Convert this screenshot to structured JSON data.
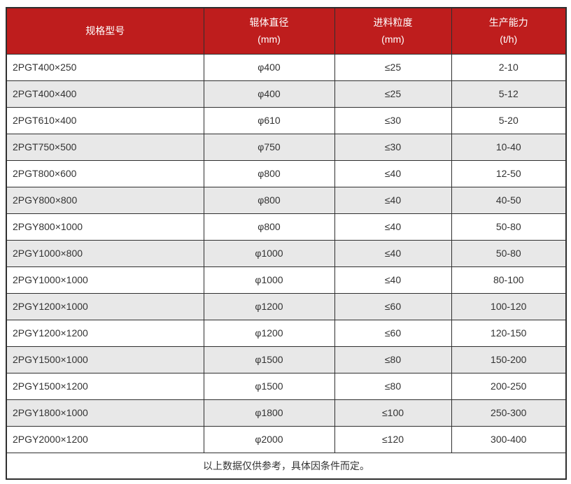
{
  "chart_data": {
    "type": "table",
    "title": "",
    "columns": [
      {
        "label": "规格型号",
        "unit": ""
      },
      {
        "label": "辊体直径",
        "unit": "(mm)"
      },
      {
        "label": "进料粒度",
        "unit": "(mm)"
      },
      {
        "label": "生产能力",
        "unit": "(t/h)"
      }
    ],
    "rows": [
      [
        "2PGT400×250",
        "φ400",
        "≤25",
        "2-10"
      ],
      [
        "2PGT400×400",
        "φ400",
        "≤25",
        "5-12"
      ],
      [
        "2PGT610×400",
        "φ610",
        "≤30",
        "5-20"
      ],
      [
        "2PGT750×500",
        "φ750",
        "≤30",
        "10-40"
      ],
      [
        "2PGT800×600",
        "φ800",
        "≤40",
        "12-50"
      ],
      [
        "2PGY800×800",
        "φ800",
        "≤40",
        "40-50"
      ],
      [
        "2PGY800×1000",
        "φ800",
        "≤40",
        "50-80"
      ],
      [
        "2PGY1000×800",
        "φ1000",
        "≤40",
        "50-80"
      ],
      [
        "2PGY1000×1000",
        "φ1000",
        "≤40",
        "80-100"
      ],
      [
        "2PGY1200×1000",
        "φ1200",
        "≤60",
        "100-120"
      ],
      [
        "2PGY1200×1200",
        "φ1200",
        "≤60",
        "120-150"
      ],
      [
        "2PGY1500×1000",
        "φ1500",
        "≤80",
        "150-200"
      ],
      [
        "2PGY1500×1200",
        "φ1500",
        "≤80",
        "200-250"
      ],
      [
        "2PGY1800×1000",
        "φ1800",
        "≤100",
        "250-300"
      ],
      [
        "2PGY2000×1200",
        "φ2000",
        "≤120",
        "300-400"
      ]
    ],
    "footnote": "以上数据仅供参考，具体因条件而定。"
  },
  "colors": {
    "header_bg": "#be1d1d",
    "header_text": "#ffffff",
    "row_alt_bg": "#e8e8e8",
    "border": "#2f2f2f",
    "text": "#333333"
  }
}
